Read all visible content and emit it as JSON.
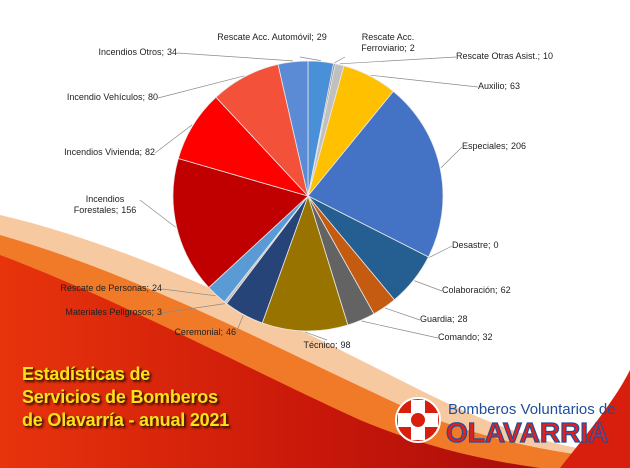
{
  "chart_data": {
    "type": "pie",
    "title_lines": [
      "Estadísticas de",
      "Servicios de Bomberos",
      "de Olavarría - anual 2021"
    ],
    "logo": {
      "line1": "Bomberos Voluntarios de",
      "line2": "OLAVARRIA"
    },
    "label_separator": ";",
    "categories": [
      "Rescate Acc. Automóvil",
      "Rescate Acc. Ferroviario",
      "Rescate Otras Asist.",
      "Auxilio",
      "Especiales",
      "Desastre",
      "Colaboración",
      "Guardia",
      "Comando",
      "Técnico",
      "Ceremonial",
      "Materiales Peligrosos",
      "Rescate de Personas",
      "Incendios Forestales",
      "Incendios Vivienda",
      "Incendio Vehículos",
      "Incendios Otros"
    ],
    "values": [
      29,
      2,
      10,
      63,
      206,
      0,
      62,
      28,
      32,
      98,
      46,
      3,
      24,
      156,
      82,
      80,
      34
    ],
    "colors": [
      "#4a90d9",
      "#8c8c8c",
      "#c0c0c0",
      "#ffc000",
      "#4472c4",
      "#7f7f7f",
      "#255e91",
      "#c55a11",
      "#636363",
      "#997300",
      "#264478",
      "#bfbfbf",
      "#5b9bd5",
      "#c00000",
      "#ff0000",
      "#f4513a",
      "#5b8bd5"
    ]
  }
}
